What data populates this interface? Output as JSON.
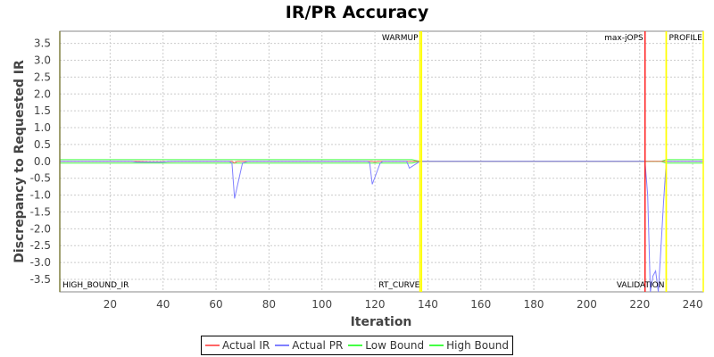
{
  "chart_data": {
    "type": "line",
    "title": "IR/PR Accuracy",
    "xlabel": "Iteration",
    "ylabel": "Discrepancy to Requested IR",
    "xlim": [
      1,
      244
    ],
    "ylim": [
      -3.87,
      3.86
    ],
    "xticks": [
      20,
      40,
      60,
      80,
      100,
      120,
      140,
      160,
      180,
      200,
      220,
      240
    ],
    "yticks": [
      3.5,
      3.0,
      2.5,
      2.0,
      1.5,
      1.0,
      0.5,
      0.0,
      -0.5,
      -1.0,
      -1.5,
      -2.0,
      -2.5,
      -3.0,
      -3.5
    ],
    "grid": true,
    "legend_placement": "bottom",
    "series": [
      {
        "name": "Actual IR",
        "color": "#ff6666",
        "points": [
          [
            1,
            0
          ],
          [
            30,
            0
          ],
          [
            35,
            -0.01
          ],
          [
            40,
            -0.01
          ],
          [
            45,
            0
          ],
          [
            66,
            0
          ],
          [
            67,
            -0.05
          ],
          [
            68,
            0
          ],
          [
            119,
            0
          ],
          [
            120,
            -0.02
          ],
          [
            121,
            0
          ],
          [
            244,
            0
          ]
        ]
      },
      {
        "name": "Actual PR",
        "color": "#8080ff",
        "points": [
          [
            1,
            0
          ],
          [
            28,
            0
          ],
          [
            30,
            -0.02
          ],
          [
            40,
            -0.02
          ],
          [
            42,
            0
          ],
          [
            65,
            0
          ],
          [
            66,
            -0.05
          ],
          [
            67,
            -1.1
          ],
          [
            70,
            -0.05
          ],
          [
            72,
            0
          ],
          [
            117,
            0
          ],
          [
            118,
            -0.02
          ],
          [
            119,
            -0.68
          ],
          [
            122,
            -0.05
          ],
          [
            123,
            0
          ],
          [
            132,
            0
          ],
          [
            133,
            -0.2
          ],
          [
            137,
            0
          ],
          [
            222,
            0
          ],
          [
            223,
            -1.0
          ],
          [
            224,
            -3.87
          ],
          [
            225,
            -3.4
          ],
          [
            226,
            -3.25
          ],
          [
            227,
            -3.87
          ],
          [
            228,
            -2.6
          ],
          [
            229,
            -1.2
          ],
          [
            230,
            0
          ],
          [
            244,
            0
          ]
        ]
      },
      {
        "name": "Low Bound",
        "color": "#44ff44",
        "points": [
          [
            1,
            -0.05
          ],
          [
            134,
            -0.05
          ],
          [
            137,
            0
          ],
          [
            228,
            0
          ],
          [
            230,
            -0.05
          ],
          [
            244,
            -0.05
          ]
        ]
      },
      {
        "name": "High Bound",
        "color": "#44ff44",
        "points": [
          [
            1,
            0.05
          ],
          [
            134,
            0.05
          ],
          [
            137,
            0
          ],
          [
            228,
            0
          ],
          [
            230,
            0.05
          ],
          [
            244,
            0.05
          ]
        ]
      }
    ],
    "markers": [
      {
        "x": 1,
        "color": "#808040",
        "label": "HIGH_BOUND_IR",
        "anchor": "bottom-right"
      },
      {
        "x": 137,
        "color": "#ffff00",
        "label": "WARMUP",
        "anchor": "top-left"
      },
      {
        "x": 137.6,
        "color": "#ffff00",
        "label": "RT_CURVE",
        "anchor": "bottom-left"
      },
      {
        "x": 222,
        "color": "#ff2020",
        "label": "max-jOPS",
        "anchor": "top-left"
      },
      {
        "x": 230,
        "color": "#ffff00",
        "label": "VALIDATION",
        "anchor": "bottom-left"
      },
      {
        "x": 230,
        "color": "#ffff00",
        "label": "PROFILE",
        "anchor": "top-right"
      },
      {
        "x": 244,
        "color": "#ffff00",
        "label": "",
        "anchor": "top-left"
      }
    ]
  }
}
